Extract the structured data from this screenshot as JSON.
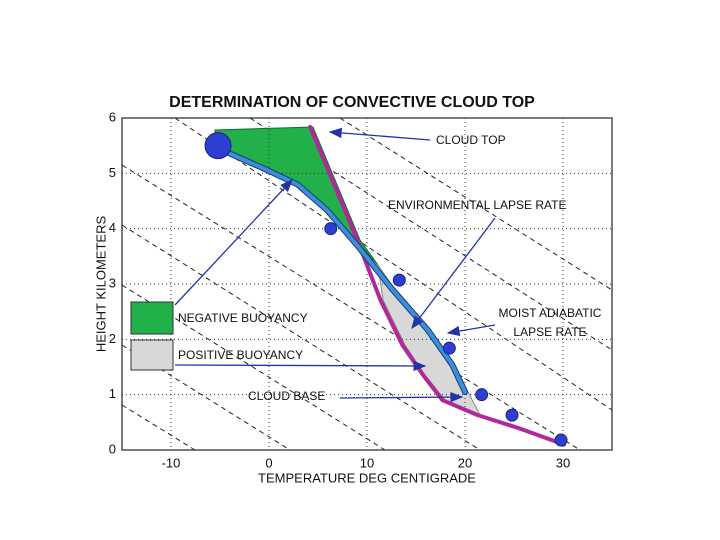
{
  "chart_data": {
    "type": "line",
    "title": "DETERMINATION OF CONVECTIVE CLOUD TOP",
    "x_label": "TEMPERATURE DEG CENTIGRADE",
    "y_label": "HEIGHT KILOMETERS",
    "xlim": [
      -15,
      35
    ],
    "ylim": [
      0,
      6
    ],
    "xticks": [
      -10,
      0,
      10,
      20,
      30
    ],
    "yticks": [
      0,
      1,
      2,
      3,
      4,
      5,
      6
    ],
    "grid": true,
    "series": [
      {
        "name": "ENVIRONMENTAL LAPSE RATE",
        "color": "#b0289a",
        "x": [
          4.2,
          9.0,
          11.4,
          13.6,
          15.7,
          17.7,
          21.3,
          25.4,
          30.1
        ],
        "values": [
          5.84,
          3.8,
          2.7,
          1.9,
          1.36,
          0.9,
          0.63,
          0.4,
          0.1
        ]
      },
      {
        "name": "MOIST ADIABATIC LAPSE RATE",
        "color": "#3a8fd8",
        "x": [
          -5.8,
          -0.2,
          2.9,
          5.9,
          9.0,
          12.6,
          16.2,
          18.7,
          20.0
        ],
        "values": [
          5.5,
          5.06,
          4.8,
          4.34,
          3.7,
          2.9,
          2.17,
          1.54,
          1.05
        ]
      }
    ],
    "markers": {
      "color": "#2d3fd0",
      "x": [
        -5.2,
        6.3,
        13.3,
        18.4,
        21.7,
        24.8,
        29.8
      ],
      "values": [
        5.5,
        4.0,
        3.07,
        1.84,
        1.0,
        0.63,
        0.18
      ]
    },
    "regions": [
      {
        "label": "NEGATIVE BUOYANCY",
        "color": "#22b04a"
      },
      {
        "label": "POSITIVE BUOYANCY",
        "color": "#d8d8d8"
      }
    ],
    "annotations": [
      "CLOUD TOP",
      "CLOUD BASE"
    ]
  }
}
